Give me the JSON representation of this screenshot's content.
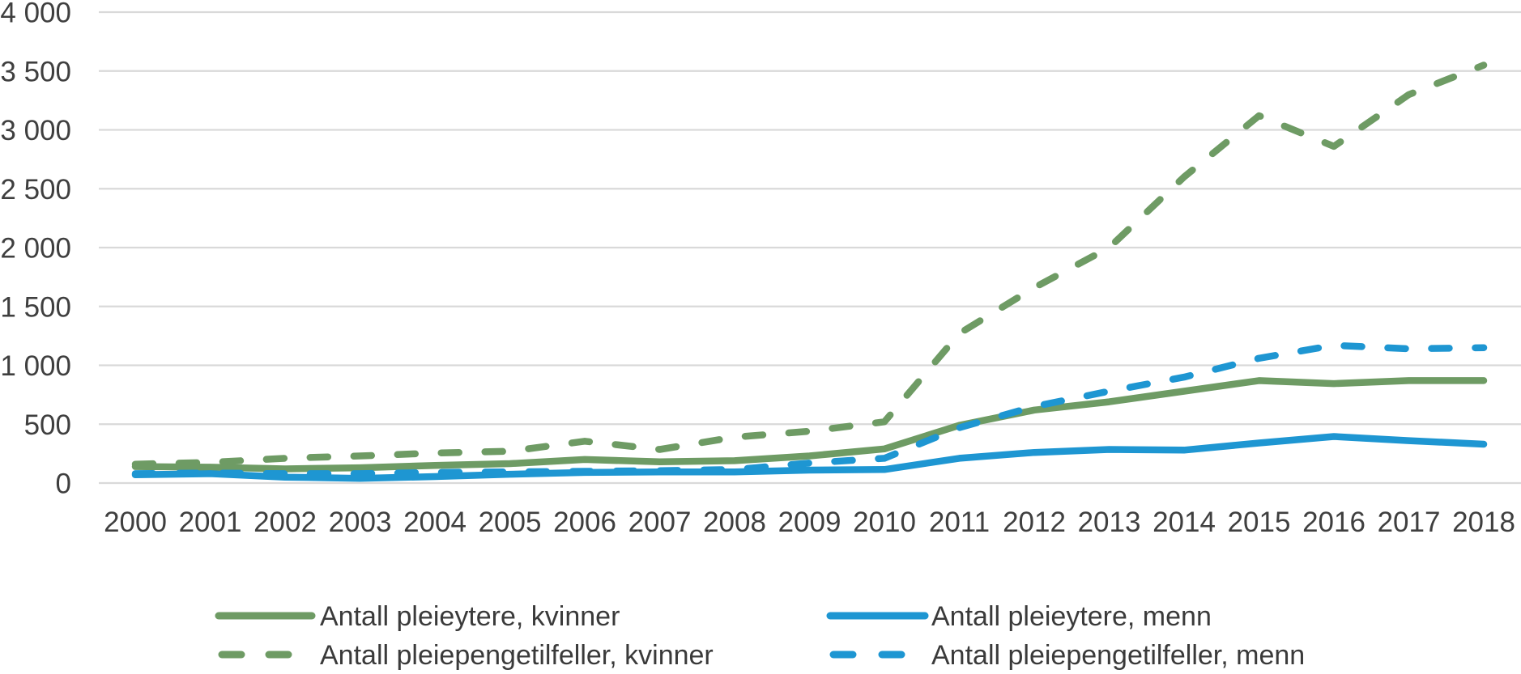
{
  "chart_data": {
    "type": "line",
    "title": "",
    "xlabel": "",
    "ylabel": "",
    "x": [
      2000,
      2001,
      2002,
      2003,
      2004,
      2005,
      2006,
      2007,
      2008,
      2009,
      2010,
      2011,
      2012,
      2013,
      2014,
      2015,
      2016,
      2017,
      2018
    ],
    "ylim": [
      0,
      4000
    ],
    "ytick_step": 500,
    "ytick_labels": [
      "0",
      "500",
      "1 000",
      "1 500",
      "2 000",
      "2 500",
      "3 000",
      "3 500",
      "4 000"
    ],
    "grid": "horizontal",
    "legend_position": "bottom",
    "series": [
      {
        "name": "Antall pleieytere, kvinner",
        "color": "#6E9B64",
        "style": "solid",
        "values": [
          140,
          135,
          120,
          130,
          150,
          165,
          200,
          180,
          190,
          230,
          290,
          490,
          620,
          690,
          780,
          870,
          845,
          870,
          870
        ]
      },
      {
        "name": "Antall pleieytere, menn",
        "color": "#1E96D2",
        "style": "solid",
        "values": [
          70,
          80,
          50,
          40,
          55,
          75,
          90,
          95,
          95,
          110,
          115,
          210,
          260,
          285,
          280,
          340,
          395,
          360,
          330
        ]
      },
      {
        "name": "Antall pleiepengetilfeller, kvinner",
        "color": "#6E9B64",
        "style": "dashed",
        "values": [
          160,
          175,
          210,
          230,
          255,
          270,
          355,
          285,
          390,
          440,
          520,
          1270,
          1660,
          2000,
          2600,
          3120,
          2860,
          3300,
          3550
        ]
      },
      {
        "name": "Antall pleiepengetilfeller, menn",
        "color": "#1E96D2",
        "style": "dashed",
        "values": [
          80,
          85,
          80,
          80,
          90,
          95,
          100,
          105,
          115,
          170,
          210,
          470,
          650,
          780,
          900,
          1060,
          1170,
          1140,
          1150
        ]
      }
    ]
  },
  "colors": {
    "green_series": "#6E9B64",
    "blue_series": "#1E96D2",
    "gridline": "#D9D9D9",
    "axis_text": "#3F3F3F",
    "legend_text": "#3A3A3A",
    "background": "#FFFFFF"
  }
}
